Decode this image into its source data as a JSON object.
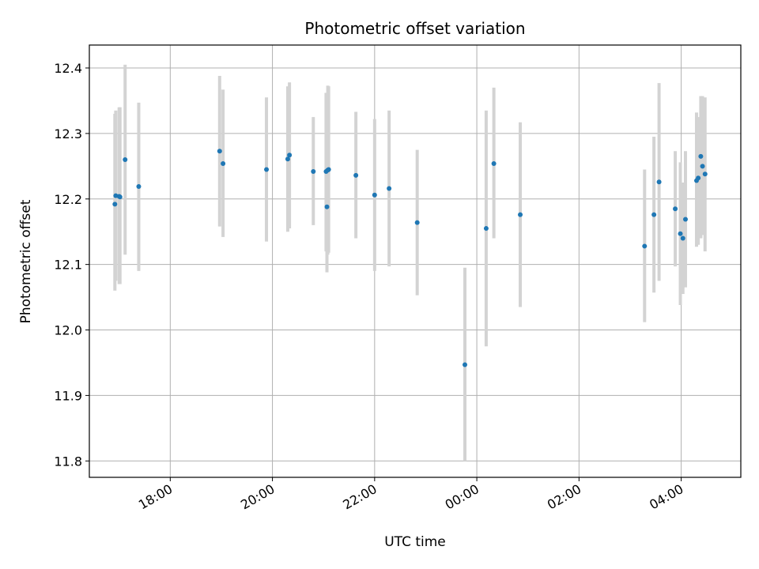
{
  "chart_data": {
    "type": "scatter",
    "title": "Photometric offset variation",
    "xlabel": "UTC time",
    "ylabel": "Photometric offset",
    "x_axis": {
      "kind": "time",
      "range": [
        "16:25",
        "05:10"
      ],
      "ticks": [
        "18:00",
        "20:00",
        "22:00",
        "00:00",
        "02:00",
        "04:00"
      ]
    },
    "y_axis": {
      "range": [
        11.775,
        12.435
      ],
      "ticks": [
        "11.8",
        "11.9",
        "12.0",
        "12.1",
        "12.2",
        "12.3",
        "12.4"
      ]
    },
    "grid": true,
    "colors": {
      "point": "#1f77b4",
      "errorbar": "#d3d3d3",
      "grid": "#b0b0b0"
    },
    "points": [
      {
        "t": "16:55",
        "y": 12.192,
        "lo": 12.06,
        "hi": 12.33
      },
      {
        "t": "16:56",
        "y": 12.205,
        "lo": 12.075,
        "hi": 12.335
      },
      {
        "t": "17:00",
        "y": 12.204,
        "lo": 12.07,
        "hi": 12.34
      },
      {
        "t": "17:01",
        "y": 12.203,
        "lo": 12.07,
        "hi": 12.34
      },
      {
        "t": "17:07",
        "y": 12.26,
        "lo": 12.115,
        "hi": 12.405
      },
      {
        "t": "17:23",
        "y": 12.219,
        "lo": 12.09,
        "hi": 12.347
      },
      {
        "t": "18:58",
        "y": 12.273,
        "lo": 12.158,
        "hi": 12.388
      },
      {
        "t": "19:02",
        "y": 12.254,
        "lo": 12.142,
        "hi": 12.367
      },
      {
        "t": "19:53",
        "y": 12.245,
        "lo": 12.135,
        "hi": 12.355
      },
      {
        "t": "20:18",
        "y": 12.261,
        "lo": 12.15,
        "hi": 12.372
      },
      {
        "t": "20:20",
        "y": 12.267,
        "lo": 12.155,
        "hi": 12.378
      },
      {
        "t": "20:48",
        "y": 12.242,
        "lo": 12.16,
        "hi": 12.325
      },
      {
        "t": "21:03",
        "y": 12.242,
        "lo": 12.12,
        "hi": 12.362
      },
      {
        "t": "21:04",
        "y": 12.188,
        "lo": 12.088,
        "hi": 12.288
      },
      {
        "t": "21:05",
        "y": 12.244,
        "lo": 12.115,
        "hi": 12.373
      },
      {
        "t": "21:06",
        "y": 12.245,
        "lo": 12.118,
        "hi": 12.372
      },
      {
        "t": "21:38",
        "y": 12.236,
        "lo": 12.14,
        "hi": 12.333
      },
      {
        "t": "22:00",
        "y": 12.206,
        "lo": 12.09,
        "hi": 12.322
      },
      {
        "t": "22:17",
        "y": 12.216,
        "lo": 12.097,
        "hi": 12.335
      },
      {
        "t": "22:50",
        "y": 12.164,
        "lo": 12.053,
        "hi": 12.275
      },
      {
        "t": "23:46",
        "y": 11.947,
        "lo": 11.8,
        "hi": 12.095
      },
      {
        "t": "00:11",
        "y": 12.155,
        "lo": 11.975,
        "hi": 12.335
      },
      {
        "t": "00:20",
        "y": 12.254,
        "lo": 12.14,
        "hi": 12.37
      },
      {
        "t": "00:51",
        "y": 12.176,
        "lo": 12.035,
        "hi": 12.317
      },
      {
        "t": "03:17",
        "y": 12.128,
        "lo": 12.012,
        "hi": 12.245
      },
      {
        "t": "03:28",
        "y": 12.176,
        "lo": 12.057,
        "hi": 12.295
      },
      {
        "t": "03:34",
        "y": 12.226,
        "lo": 12.075,
        "hi": 12.377
      },
      {
        "t": "03:53",
        "y": 12.185,
        "lo": 12.097,
        "hi": 12.273
      },
      {
        "t": "03:59",
        "y": 12.147,
        "lo": 12.038,
        "hi": 12.256
      },
      {
        "t": "04:02",
        "y": 12.14,
        "lo": 12.055,
        "hi": 12.225
      },
      {
        "t": "04:05",
        "y": 12.169,
        "lo": 12.065,
        "hi": 12.273
      },
      {
        "t": "04:18",
        "y": 12.228,
        "lo": 12.127,
        "hi": 12.332
      },
      {
        "t": "04:20",
        "y": 12.232,
        "lo": 12.13,
        "hi": 12.325
      },
      {
        "t": "04:23",
        "y": 12.265,
        "lo": 12.14,
        "hi": 12.357
      },
      {
        "t": "04:25",
        "y": 12.25,
        "lo": 12.145,
        "hi": 12.357
      },
      {
        "t": "04:28",
        "y": 12.238,
        "lo": 12.12,
        "hi": 12.355
      }
    ]
  }
}
